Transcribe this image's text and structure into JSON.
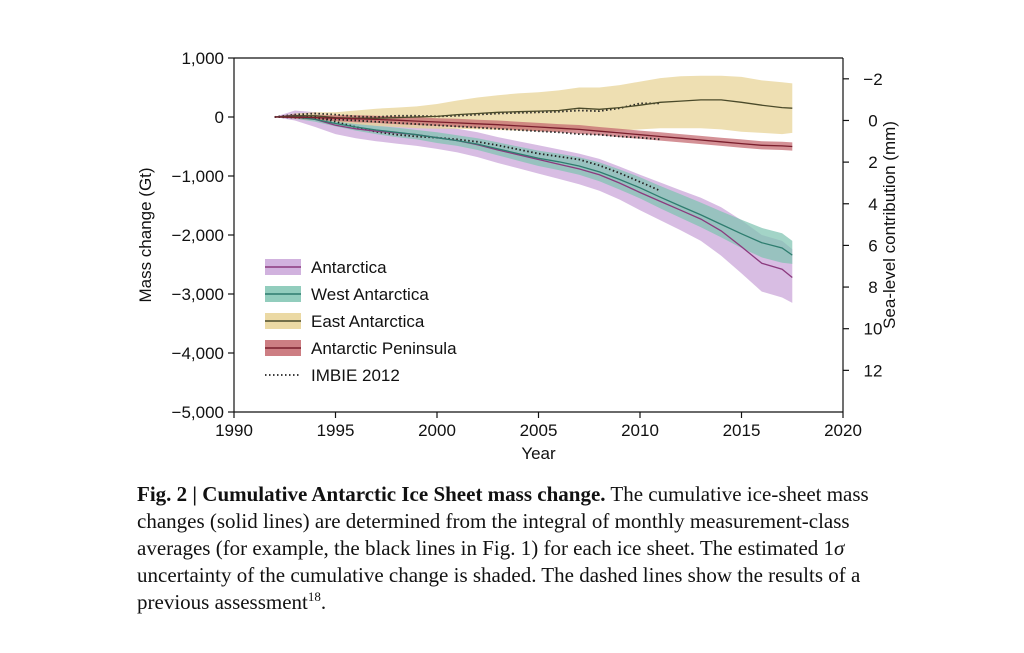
{
  "chart_data": {
    "type": "line",
    "title": "",
    "xlabel": "Year",
    "ylabel": "Mass change (Gt)",
    "y2label": "Sea-level contribution (mm)",
    "xlim": [
      1990,
      2020
    ],
    "ylim": [
      -5000,
      1000
    ],
    "y2lim": [
      14,
      -3
    ],
    "x_ticks": [
      "1990",
      "1995",
      "2000",
      "2005",
      "2010",
      "2015",
      "2020"
    ],
    "y_ticks": [
      "1,000",
      "0",
      "−1,000",
      "−2,000",
      "−3,000",
      "−4,000",
      "−5,000"
    ],
    "y2_ticks": [
      "−2",
      "0",
      "2",
      "4",
      "6",
      "8",
      "10",
      "12"
    ],
    "legend_position": "lower-left",
    "series": [
      {
        "name": "Antarctica",
        "color": "#8b3a7e",
        "fill": "#c9a4d8",
        "x": [
          1992,
          1993,
          1994,
          1995,
          1996,
          1997,
          1998,
          1999,
          2000,
          2001,
          2002,
          2003,
          2004,
          2005,
          2006,
          2007,
          2008,
          2009,
          2010,
          2011,
          2012,
          2013,
          2014,
          2015,
          2016,
          2017,
          2017.5
        ],
        "y": [
          0,
          30,
          -40,
          -140,
          -200,
          -240,
          -270,
          -300,
          -350,
          -400,
          -470,
          -560,
          -640,
          -720,
          -800,
          -880,
          -980,
          -1120,
          -1280,
          -1430,
          -1580,
          -1730,
          -1930,
          -2200,
          -2480,
          -2580,
          -2720
        ],
        "lower": [
          0,
          -60,
          -170,
          -290,
          -360,
          -410,
          -450,
          -490,
          -540,
          -600,
          -680,
          -780,
          -870,
          -960,
          -1050,
          -1140,
          -1250,
          -1400,
          -1580,
          -1750,
          -1920,
          -2100,
          -2350,
          -2650,
          -2960,
          -3060,
          -3150
        ],
        "upper": [
          0,
          110,
          80,
          -10,
          -50,
          -80,
          -100,
          -120,
          -160,
          -200,
          -260,
          -340,
          -410,
          -480,
          -550,
          -620,
          -710,
          -840,
          -980,
          -1110,
          -1240,
          -1370,
          -1530,
          -1750,
          -2000,
          -2100,
          -2240
        ]
      },
      {
        "name": "West Antarctica",
        "color": "#2e7d6f",
        "fill": "#7fc4b2",
        "x": [
          1992,
          1993,
          1994,
          1995,
          1996,
          1997,
          1998,
          1999,
          2000,
          2001,
          2002,
          2003,
          2004,
          2005,
          2006,
          2007,
          2008,
          2009,
          2010,
          2011,
          2012,
          2013,
          2014,
          2015,
          2016,
          2017,
          2017.5
        ],
        "y": [
          0,
          0,
          -40,
          -110,
          -170,
          -220,
          -260,
          -300,
          -350,
          -400,
          -460,
          -540,
          -620,
          -700,
          -760,
          -830,
          -930,
          -1060,
          -1200,
          -1360,
          -1510,
          -1660,
          -1820,
          -1980,
          -2130,
          -2220,
          -2340
        ],
        "lower": [
          0,
          -30,
          -80,
          -160,
          -230,
          -290,
          -340,
          -380,
          -440,
          -490,
          -560,
          -650,
          -740,
          -830,
          -900,
          -980,
          -1090,
          -1230,
          -1380,
          -1550,
          -1710,
          -1870,
          -2040,
          -2220,
          -2380,
          -2470,
          -2490
        ],
        "upper": [
          0,
          30,
          0,
          -60,
          -110,
          -150,
          -180,
          -220,
          -260,
          -310,
          -360,
          -430,
          -500,
          -570,
          -620,
          -680,
          -770,
          -890,
          -1020,
          -1170,
          -1310,
          -1450,
          -1600,
          -1740,
          -1880,
          -1970,
          -2100
        ]
      },
      {
        "name": "East Antarctica",
        "color": "#4a4a2a",
        "fill": "#e8d294",
        "x": [
          1992,
          1993,
          1994,
          1995,
          1996,
          1997,
          1998,
          1999,
          2000,
          2001,
          2002,
          2003,
          2004,
          2005,
          2006,
          2007,
          2008,
          2009,
          2010,
          2011,
          2012,
          2013,
          2014,
          2015,
          2016,
          2017,
          2017.5
        ],
        "y": [
          0,
          20,
          20,
          -10,
          -20,
          -20,
          -10,
          0,
          10,
          40,
          60,
          80,
          90,
          100,
          110,
          150,
          130,
          160,
          200,
          250,
          270,
          290,
          290,
          250,
          200,
          160,
          150
        ],
        "lower": [
          0,
          -10,
          -30,
          -80,
          -120,
          -150,
          -170,
          -190,
          -200,
          -200,
          -210,
          -220,
          -230,
          -240,
          -240,
          -220,
          -250,
          -230,
          -210,
          -190,
          -190,
          -190,
          -210,
          -250,
          -270,
          -290,
          -270
        ],
        "upper": [
          0,
          60,
          80,
          80,
          110,
          140,
          160,
          180,
          220,
          280,
          330,
          370,
          400,
          420,
          450,
          500,
          500,
          540,
          600,
          660,
          690,
          700,
          700,
          680,
          620,
          590,
          570
        ]
      },
      {
        "name": "Antarctic Peninsula",
        "color": "#7a1e2c",
        "fill": "#c4676d",
        "x": [
          1992,
          1993,
          1994,
          1995,
          1996,
          1997,
          1998,
          1999,
          2000,
          2001,
          2002,
          2003,
          2004,
          2005,
          2006,
          2007,
          2008,
          2009,
          2010,
          2011,
          2012,
          2013,
          2014,
          2015,
          2016,
          2017,
          2017.5
        ],
        "y": [
          0,
          -5,
          -10,
          -20,
          -30,
          -40,
          -55,
          -70,
          -85,
          -100,
          -115,
          -130,
          -150,
          -170,
          -190,
          -210,
          -240,
          -270,
          -300,
          -330,
          -360,
          -390,
          -420,
          -450,
          -480,
          -490,
          -500
        ],
        "lower": [
          0,
          -30,
          -50,
          -70,
          -90,
          -100,
          -120,
          -135,
          -150,
          -170,
          -185,
          -200,
          -220,
          -240,
          -260,
          -285,
          -310,
          -340,
          -370,
          -400,
          -430,
          -460,
          -490,
          -520,
          -550,
          -560,
          -570
        ],
        "upper": [
          0,
          20,
          30,
          30,
          30,
          20,
          10,
          -5,
          -20,
          -30,
          -45,
          -60,
          -80,
          -100,
          -120,
          -135,
          -170,
          -200,
          -230,
          -260,
          -290,
          -320,
          -350,
          -380,
          -410,
          -420,
          -430
        ]
      }
    ],
    "imbie_2012": {
      "name": "IMBIE 2012",
      "style": "dotted",
      "lines": [
        {
          "x": [
            1992,
            1993,
            1994,
            1995,
            1996,
            1997,
            1998,
            1999,
            2000,
            2001,
            2002,
            2003,
            2004,
            2005,
            2006,
            2007,
            2008,
            2009,
            2010,
            2011
          ],
          "y": [
            0,
            40,
            60,
            40,
            10,
            0,
            20,
            20,
            10,
            20,
            40,
            60,
            70,
            80,
            90,
            110,
            100,
            150,
            230,
            230
          ]
        },
        {
          "x": [
            1992,
            1993,
            1994,
            1995,
            1996,
            1997,
            1998,
            1999,
            2000,
            2001,
            2002,
            2003,
            2004,
            2005,
            2006,
            2007,
            2008,
            2009,
            2010,
            2011
          ],
          "y": [
            0,
            -10,
            -20,
            -40,
            -60,
            -80,
            -100,
            -120,
            -140,
            -160,
            -180,
            -200,
            -220,
            -240,
            -260,
            -290,
            -300,
            -330,
            -350,
            -380
          ]
        },
        {
          "x": [
            1992,
            1993,
            1994,
            1995,
            1996,
            1997,
            1998,
            1999,
            2000,
            2001,
            2002,
            2003,
            2004,
            2005,
            2006,
            2007,
            2008,
            2009,
            2010,
            2011
          ],
          "y": [
            0,
            30,
            0,
            -80,
            -170,
            -250,
            -300,
            -330,
            -350,
            -380,
            -420,
            -480,
            -550,
            -620,
            -670,
            -720,
            -820,
            -950,
            -1100,
            -1250
          ]
        }
      ]
    }
  },
  "caption": {
    "label": "Fig. 2 | Cumulative Antarctic Ice Sheet mass change.",
    "text": " The cumulative ice-sheet mass changes (solid lines) are determined from the integral of monthly measurement-class averages (for example, the black lines in Fig. 1) for each ice sheet. The estimated 1",
    "sigma": "σ",
    "text2": " uncertainty of the cumulative change is shaded. The dashed lines show the results of a previous assessment",
    "ref": "18",
    "end": "."
  }
}
